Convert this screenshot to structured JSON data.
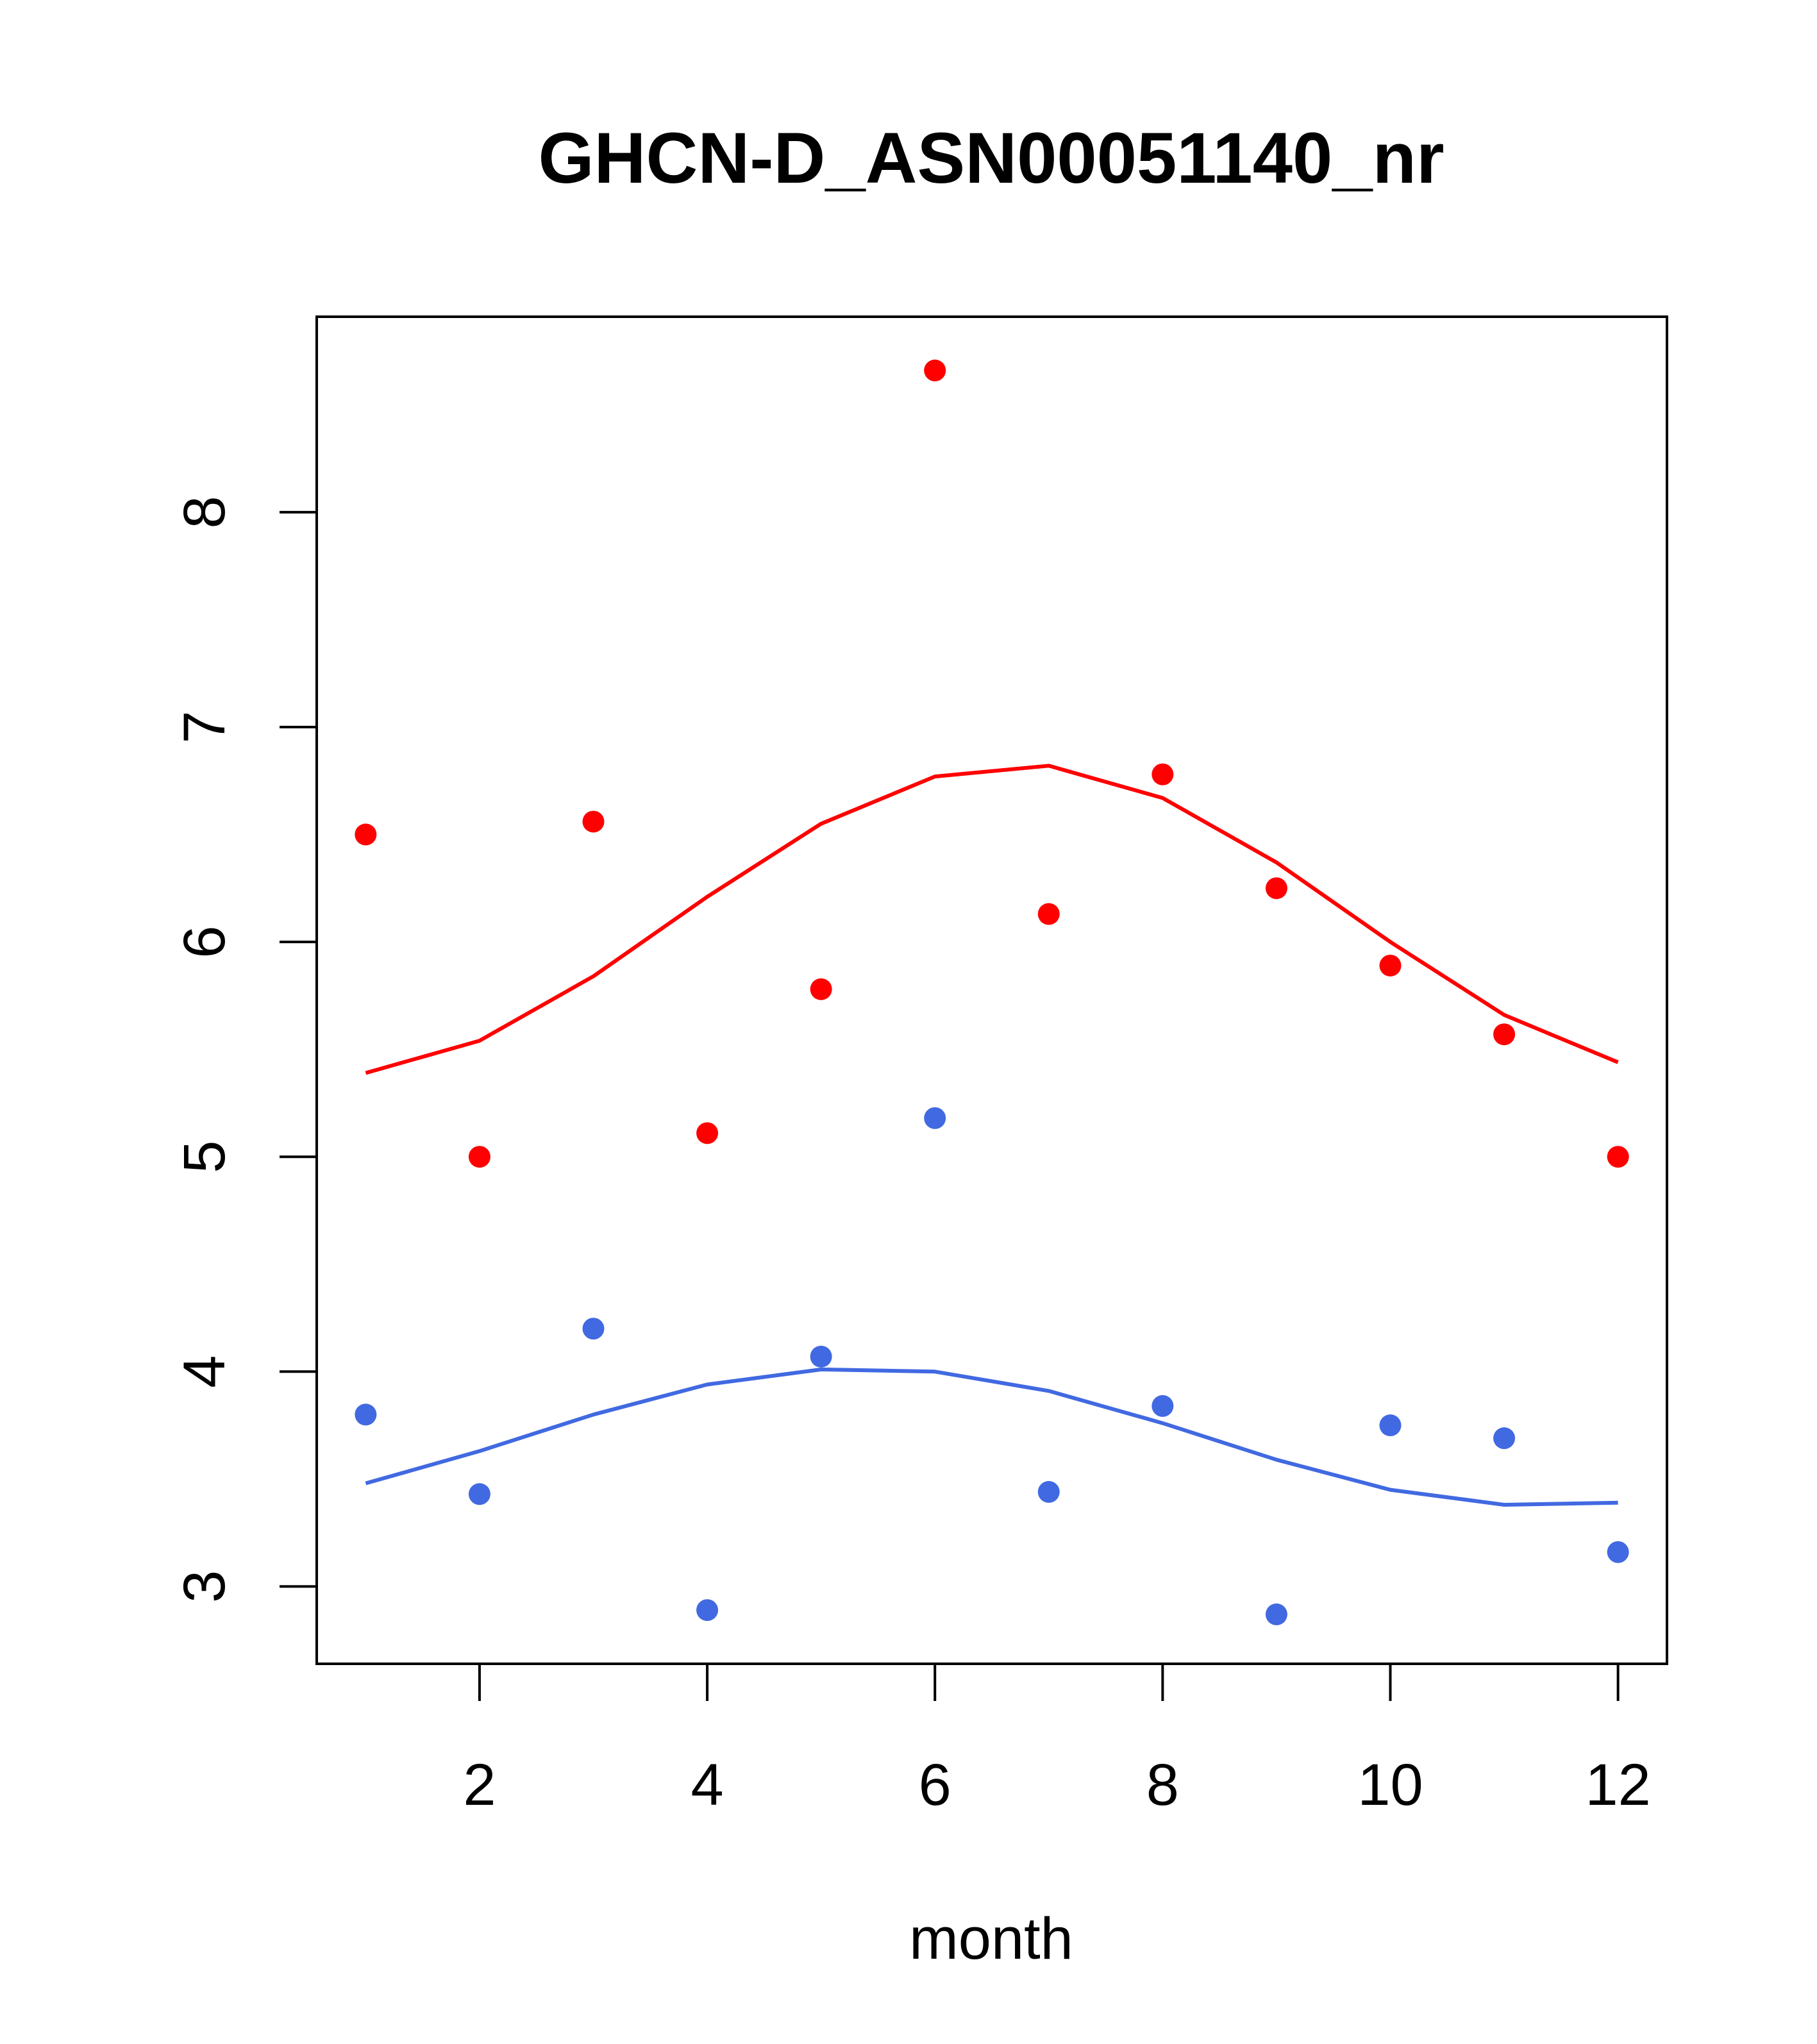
{
  "chart_data": {
    "type": "scatter",
    "title": "GHCN-D_ASN00051140_nr",
    "xlabel": "month",
    "ylabel": "",
    "xlim": [
      0.57,
      12.43
    ],
    "ylim": [
      2.64,
      8.91
    ],
    "xticks": [
      2,
      4,
      6,
      8,
      10,
      12
    ],
    "yticks": [
      3,
      4,
      5,
      6,
      7,
      8
    ],
    "grid": false,
    "legend": "none",
    "series": [
      {
        "color": "#ff0000",
        "points": {
          "x": [
            1,
            2,
            3,
            4,
            5,
            6,
            7,
            8,
            9,
            10,
            11,
            12
          ],
          "y": [
            6.5,
            5.0,
            6.56,
            5.11,
            5.78,
            8.66,
            6.13,
            6.78,
            6.25,
            5.89,
            5.57,
            5.0
          ]
        },
        "line": {
          "x": [
            1,
            2,
            3,
            4,
            5,
            6,
            7,
            8,
            9,
            10,
            11,
            12
          ],
          "y": [
            5.39,
            5.54,
            5.84,
            6.21,
            6.55,
            6.77,
            6.82,
            6.67,
            6.37,
            6.0,
            5.66,
            5.44
          ]
        }
      },
      {
        "color": "#4169e1",
        "points": {
          "x": [
            1,
            2,
            3,
            4,
            5,
            6,
            7,
            8,
            9,
            10,
            11,
            12
          ],
          "y": [
            3.8,
            3.43,
            4.2,
            2.89,
            4.07,
            5.18,
            3.44,
            3.84,
            2.87,
            3.75,
            3.69,
            3.16
          ]
        },
        "line": {
          "x": [
            1,
            2,
            3,
            4,
            5,
            6,
            7,
            8,
            9,
            10,
            11,
            12
          ],
          "y": [
            3.48,
            3.63,
            3.8,
            3.94,
            4.01,
            4.0,
            3.91,
            3.76,
            3.59,
            3.45,
            3.38,
            3.39
          ]
        }
      }
    ]
  }
}
